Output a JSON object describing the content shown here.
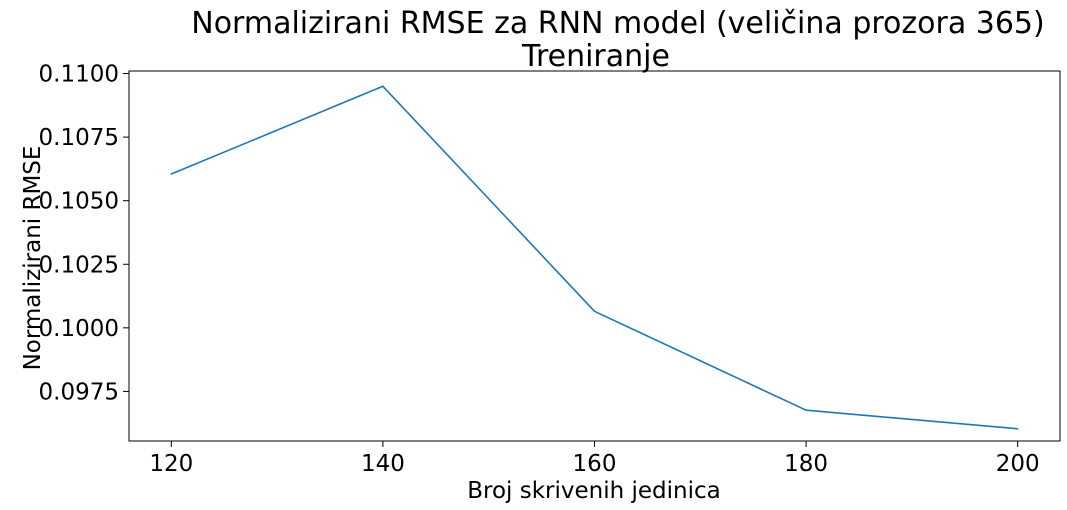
{
  "chart_data": {
    "type": "line",
    "title": "Normalizirani RMSE za RNN model (veličina prozora 365)",
    "subtitle": "Treniranje",
    "xlabel": "Broj skrivenih jedinica",
    "ylabel": "Normalizirani RMSE",
    "x": [
      120,
      140,
      160,
      180,
      200
    ],
    "series": [
      {
        "values": [
          0.10605,
          0.1095,
          0.10065,
          0.09676,
          0.09603
        ],
        "color": "#1f77b4"
      }
    ],
    "xticks": [
      120,
      140,
      160,
      180,
      200
    ],
    "xtick_labels": [
      "120",
      "140",
      "160",
      "180",
      "200"
    ],
    "yticks": [
      0.0975,
      0.1,
      0.1025,
      0.105,
      0.1075,
      0.11
    ],
    "ytick_labels": [
      "0.0975",
      "0.1000",
      "0.1025",
      "0.1050",
      "0.1075",
      "0.1100"
    ],
    "xlim": [
      116,
      204
    ],
    "ylim": [
      0.09555,
      0.1101
    ],
    "grid": false,
    "legend": "none"
  }
}
